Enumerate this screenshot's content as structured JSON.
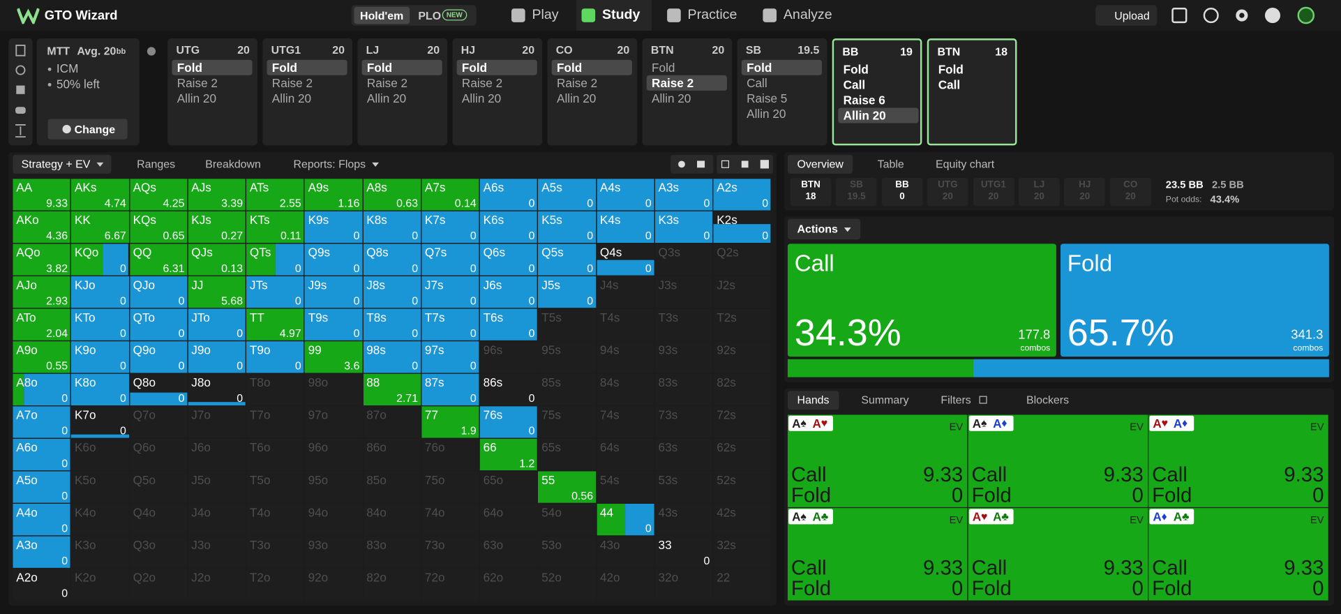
{
  "nav": {
    "brand": "GTO Wizard",
    "game_tabs": [
      "Hold'em",
      "PLO"
    ],
    "active_game": 0,
    "badge": "NEW",
    "menu": [
      "Play",
      "Study",
      "Practice",
      "Analyze"
    ],
    "active_menu": 1,
    "upload": "Upload"
  },
  "spot": {
    "format": "MTT",
    "avg": "Avg. 20",
    "avg_unit": "bb",
    "items": [
      "ICM",
      "50% left"
    ],
    "change": "Change"
  },
  "positions": [
    {
      "name": "UTG",
      "stack": 20,
      "actions": [
        "Fold",
        "Raise 2",
        "Allin 20"
      ],
      "selected": 0
    },
    {
      "name": "UTG1",
      "stack": 20,
      "actions": [
        "Fold",
        "Raise 2",
        "Allin 20"
      ],
      "selected": 0
    },
    {
      "name": "LJ",
      "stack": 20,
      "actions": [
        "Fold",
        "Raise 2",
        "Allin 20"
      ],
      "selected": 0
    },
    {
      "name": "HJ",
      "stack": 20,
      "actions": [
        "Fold",
        "Raise 2",
        "Allin 20"
      ],
      "selected": 0
    },
    {
      "name": "CO",
      "stack": 20,
      "actions": [
        "Fold",
        "Raise 2",
        "Allin 20"
      ],
      "selected": 0
    },
    {
      "name": "BTN",
      "stack": 20,
      "actions": [
        "Fold",
        "Raise 2",
        "Allin 20"
      ],
      "selected": 1
    },
    {
      "name": "SB",
      "stack": 19.5,
      "actions": [
        "Fold",
        "Call",
        "Raise 5",
        "Allin 20"
      ],
      "selected": 0
    },
    {
      "name": "BB",
      "stack": 19,
      "actions": [
        "Fold",
        "Call",
        "Raise 6",
        "Allin 20"
      ],
      "selected": 3,
      "active": true
    },
    {
      "name": "BTN",
      "stack": 18,
      "actions": [
        "Fold",
        "Call"
      ],
      "active": true
    }
  ],
  "left_tabs": [
    "Strategy + EV",
    "Ranges",
    "Breakdown",
    "Reports: Flops"
  ],
  "colors": {
    "call": "#17a817",
    "fold": "#1a95d6"
  },
  "hand_grid": {
    "rows": [
      [
        [
          "AA",
          9.33,
          1,
          0,
          1
        ],
        [
          "AKs",
          4.74,
          1,
          0,
          1
        ],
        [
          "AQs",
          4.25,
          1,
          0,
          1
        ],
        [
          "AJs",
          3.39,
          1,
          0,
          1
        ],
        [
          "ATs",
          2.55,
          1,
          0,
          1
        ],
        [
          "A9s",
          1.16,
          1,
          0,
          1
        ],
        [
          "A8s",
          0.63,
          1,
          0,
          1
        ],
        [
          "A7s",
          0.14,
          1,
          0,
          1
        ],
        [
          "A6s",
          0,
          0,
          1,
          1
        ],
        [
          "A5s",
          0,
          0,
          1,
          1
        ],
        [
          "A4s",
          0,
          0,
          1,
          1
        ],
        [
          "A3s",
          0,
          0,
          1,
          1
        ],
        [
          "A2s",
          0,
          0,
          1,
          1
        ]
      ],
      [
        [
          "AKo",
          4.36,
          1,
          0,
          1
        ],
        [
          "KK",
          6.67,
          1,
          0,
          1
        ],
        [
          "KQs",
          0.65,
          1,
          0,
          1
        ],
        [
          "KJs",
          0.27,
          1,
          0,
          1
        ],
        [
          "KTs",
          0.11,
          1,
          0,
          1
        ],
        [
          "K9s",
          0,
          0,
          1,
          1
        ],
        [
          "K8s",
          0,
          0,
          1,
          1
        ],
        [
          "K7s",
          0,
          0,
          1,
          1
        ],
        [
          "K6s",
          0,
          0,
          1,
          1
        ],
        [
          "K5s",
          0,
          0,
          1,
          1
        ],
        [
          "K4s",
          0,
          0,
          1,
          1
        ],
        [
          "K3s",
          0,
          0,
          1,
          1
        ],
        [
          "K2s",
          0,
          0,
          1,
          0.6
        ]
      ],
      [
        [
          "AQo",
          3.82,
          1,
          0,
          1
        ],
        [
          "KQo",
          0,
          0.55,
          0.45,
          1
        ],
        [
          "QQ",
          6.31,
          1,
          0,
          1
        ],
        [
          "QJs",
          0.13,
          1,
          0,
          1
        ],
        [
          "QTs",
          0,
          0.5,
          0.5,
          1
        ],
        [
          "Q9s",
          0,
          0,
          1,
          1
        ],
        [
          "Q8s",
          0,
          0,
          1,
          1
        ],
        [
          "Q7s",
          0,
          0,
          1,
          1
        ],
        [
          "Q6s",
          0,
          0,
          1,
          1
        ],
        [
          "Q5s",
          0,
          0,
          1,
          1
        ],
        [
          "Q4s",
          0,
          0,
          1,
          0.5
        ],
        [
          "Q3s"
        ],
        [
          "Q2s"
        ]
      ],
      [
        [
          "AJo",
          2.93,
          1,
          0,
          1
        ],
        [
          "KJo",
          0,
          0,
          1,
          1
        ],
        [
          "QJo",
          0,
          0,
          1,
          1
        ],
        [
          "JJ",
          5.68,
          1,
          0,
          1
        ],
        [
          "JTs",
          0,
          0,
          1,
          1
        ],
        [
          "J9s",
          0,
          0,
          1,
          1
        ],
        [
          "J8s",
          0,
          0,
          1,
          1
        ],
        [
          "J7s",
          0,
          0,
          1,
          1
        ],
        [
          "J6s",
          0,
          0,
          1,
          1
        ],
        [
          "J5s",
          0,
          0,
          1,
          1
        ],
        [
          "J4s"
        ],
        [
          "J3s"
        ],
        [
          "J2s"
        ]
      ],
      [
        [
          "ATo",
          2.04,
          1,
          0,
          1
        ],
        [
          "KTo",
          0,
          0,
          1,
          1
        ],
        [
          "QTo",
          0,
          0,
          1,
          1
        ],
        [
          "JTo",
          0,
          0,
          1,
          1
        ],
        [
          "TT",
          4.97,
          1,
          0,
          1
        ],
        [
          "T9s",
          0,
          0,
          1,
          1
        ],
        [
          "T8s",
          0,
          0,
          1,
          1
        ],
        [
          "T7s",
          0,
          0,
          1,
          1
        ],
        [
          "T6s",
          0,
          0,
          1,
          1
        ],
        [
          "T5s"
        ],
        [
          "T4s"
        ],
        [
          "T3s"
        ],
        [
          "T2s"
        ]
      ],
      [
        [
          "A9o",
          0.55,
          1,
          0,
          1
        ],
        [
          "K9o",
          0,
          0,
          1,
          1
        ],
        [
          "Q9o",
          0,
          0,
          1,
          1
        ],
        [
          "J9o",
          0,
          0,
          1,
          1
        ],
        [
          "T9o",
          0,
          0,
          1,
          1
        ],
        [
          "99",
          3.6,
          1,
          0,
          1
        ],
        [
          "98s",
          0,
          0,
          1,
          1
        ],
        [
          "97s",
          0,
          0,
          1,
          1
        ],
        [
          "96s"
        ],
        [
          "95s"
        ],
        [
          "94s"
        ],
        [
          "93s"
        ],
        [
          "92s"
        ]
      ],
      [
        [
          "A8o",
          0,
          0.2,
          0.8,
          1
        ],
        [
          "K8o",
          0,
          0,
          1,
          1
        ],
        [
          "Q8o",
          0,
          0,
          1,
          0.4
        ],
        [
          "J8o",
          0,
          0,
          1,
          0.1
        ],
        [
          "T8o"
        ],
        [
          "98o"
        ],
        [
          "88",
          2.71,
          1,
          0,
          1
        ],
        [
          "87s",
          0,
          0,
          1,
          1
        ],
        [
          "86s",
          0,
          0,
          1,
          0
        ],
        [
          "85s"
        ],
        [
          "84s"
        ],
        [
          "83s"
        ],
        [
          "82s"
        ]
      ],
      [
        [
          "A7o",
          0,
          0,
          1,
          1
        ],
        [
          "K7o",
          0,
          0,
          1,
          0.1
        ],
        [
          "Q7o"
        ],
        [
          "J7o"
        ],
        [
          "T7o"
        ],
        [
          "97o"
        ],
        [
          "87o"
        ],
        [
          "77",
          1.9,
          1,
          0,
          1
        ],
        [
          "76s",
          0,
          0,
          1,
          1
        ],
        [
          "75s"
        ],
        [
          "74s"
        ],
        [
          "73s"
        ],
        [
          "72s"
        ]
      ],
      [
        [
          "A6o",
          0,
          0,
          1,
          1
        ],
        [
          "K6o"
        ],
        [
          "Q6o"
        ],
        [
          "J6o"
        ],
        [
          "T6o"
        ],
        [
          "96o"
        ],
        [
          "86o"
        ],
        [
          "76o"
        ],
        [
          "66",
          1.2,
          1,
          0,
          1
        ],
        [
          "65s"
        ],
        [
          "64s"
        ],
        [
          "63s"
        ],
        [
          "62s"
        ]
      ],
      [
        [
          "A5o",
          0,
          0,
          1,
          1
        ],
        [
          "K5o"
        ],
        [
          "Q5o"
        ],
        [
          "J5o"
        ],
        [
          "T5o"
        ],
        [
          "95o"
        ],
        [
          "85o"
        ],
        [
          "75o"
        ],
        [
          "65o"
        ],
        [
          "55",
          0.56,
          1,
          0,
          1
        ],
        [
          "54s"
        ],
        [
          "53s"
        ],
        [
          "52s"
        ]
      ],
      [
        [
          "A4o",
          0,
          0,
          1,
          1
        ],
        [
          "K4o"
        ],
        [
          "Q4o"
        ],
        [
          "J4o"
        ],
        [
          "T4o"
        ],
        [
          "94o"
        ],
        [
          "84o"
        ],
        [
          "74o"
        ],
        [
          "64o"
        ],
        [
          "54o"
        ],
        [
          "44",
          0,
          0.5,
          0.5,
          1
        ],
        [
          "43s"
        ],
        [
          "42s"
        ]
      ],
      [
        [
          "A3o",
          0,
          0,
          1,
          1
        ],
        [
          "K3o"
        ],
        [
          "Q3o"
        ],
        [
          "J3o"
        ],
        [
          "T3o"
        ],
        [
          "93o"
        ],
        [
          "83o"
        ],
        [
          "73o"
        ],
        [
          "63o"
        ],
        [
          "53o"
        ],
        [
          "43o"
        ],
        [
          "33",
          0,
          0,
          1,
          0
        ],
        [
          "32s"
        ]
      ],
      [
        [
          "A2o",
          0,
          0,
          1,
          0
        ],
        [
          "K2o"
        ],
        [
          "Q2o"
        ],
        [
          "J2o"
        ],
        [
          "T2o"
        ],
        [
          "92o"
        ],
        [
          "82o"
        ],
        [
          "72o"
        ],
        [
          "62o"
        ],
        [
          "52o"
        ],
        [
          "42o"
        ],
        [
          "32o"
        ],
        [
          "22"
        ]
      ]
    ]
  },
  "right_tabs": [
    "Overview",
    "Table",
    "Equity chart"
  ],
  "seats": [
    {
      "name": "BTN",
      "stack": 18,
      "active": true
    },
    {
      "name": "SB",
      "stack": 19.5
    },
    {
      "name": "BB",
      "stack": 0,
      "active": true
    },
    {
      "name": "UTG",
      "stack": 20
    },
    {
      "name": "UTG1",
      "stack": 20
    },
    {
      "name": "LJ",
      "stack": 20
    },
    {
      "name": "HJ",
      "stack": 20
    },
    {
      "name": "CO",
      "stack": 20
    }
  ],
  "pot": {
    "total": "23.5 BB",
    "call": "2.5 BB",
    "odds_label": "Pot odds:",
    "odds": "43.4%"
  },
  "actions_menu": "Actions",
  "actions": [
    {
      "name": "Call",
      "pct": 34.3,
      "pct_label": "34.3%",
      "combos": 177.8,
      "color": "#17a817"
    },
    {
      "name": "Fold",
      "pct": 65.7,
      "pct_label": "65.7%",
      "combos": 341.3,
      "color": "#1a95d6"
    }
  ],
  "combos_label": "combos",
  "hand_tabs": [
    "Hands",
    "Summary",
    "Filters",
    "Blockers"
  ],
  "suit_colors": {
    "♠": "#222222",
    "♥": "#a80f0f",
    "♦": "#1b3fd0",
    "♣": "#0e7a0e"
  },
  "ev_label": "EV",
  "combo_cards": [
    {
      "cards": [
        [
          "A",
          "♠"
        ],
        [
          "A",
          "♥"
        ]
      ],
      "rows": [
        [
          "Call",
          9.33
        ],
        [
          "Fold",
          0
        ]
      ]
    },
    {
      "cards": [
        [
          "A",
          "♠"
        ],
        [
          "A",
          "♦"
        ]
      ],
      "rows": [
        [
          "Call",
          9.33
        ],
        [
          "Fold",
          0
        ]
      ]
    },
    {
      "cards": [
        [
          "A",
          "♥"
        ],
        [
          "A",
          "♦"
        ]
      ],
      "rows": [
        [
          "Call",
          9.33
        ],
        [
          "Fold",
          0
        ]
      ]
    },
    {
      "cards": [
        [
          "A",
          "♠"
        ],
        [
          "A",
          "♣"
        ]
      ],
      "rows": [
        [
          "Call",
          9.33
        ],
        [
          "Fold",
          0
        ]
      ]
    },
    {
      "cards": [
        [
          "A",
          "♥"
        ],
        [
          "A",
          "♣"
        ]
      ],
      "rows": [
        [
          "Call",
          9.33
        ],
        [
          "Fold",
          0
        ]
      ]
    },
    {
      "cards": [
        [
          "A",
          "♦"
        ],
        [
          "A",
          "♣"
        ]
      ],
      "rows": [
        [
          "Call",
          9.33
        ],
        [
          "Fold",
          0
        ]
      ]
    }
  ]
}
